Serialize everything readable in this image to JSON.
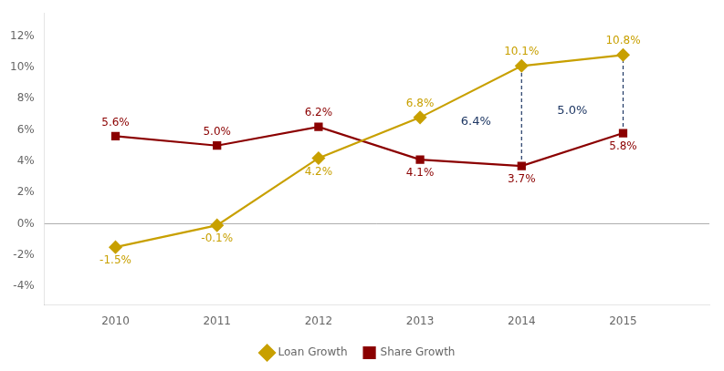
{
  "chart_data": {
    "type": "line",
    "x": [
      2010,
      2011,
      2012,
      2013,
      2014,
      2015
    ],
    "series": [
      {
        "name": "Loan Growth",
        "color": "#C8A000",
        "marker": "diamond",
        "values": [
          -1.5,
          -0.1,
          4.2,
          6.8,
          10.1,
          10.8
        ],
        "value_labels": [
          "-1.5%",
          "-0.1%",
          "4.2%",
          "6.8%",
          "10.1%",
          "10.8%"
        ]
      },
      {
        "name": "Share Growth",
        "color": "#8B0000",
        "marker": "square",
        "values": [
          5.6,
          5.0,
          6.2,
          4.1,
          3.7,
          5.8
        ],
        "value_labels": [
          "5.6%",
          "5.0%",
          "6.2%",
          "4.1%",
          "3.7%",
          "5.8%"
        ]
      }
    ],
    "xlim": [
      2009.3,
      2015.85
    ],
    "xticks": [
      2010,
      2011,
      2012,
      2013,
      2014,
      2015
    ],
    "ylim": [
      -5.2,
      13.5
    ],
    "yticks": [
      {
        "value": -4,
        "label": "-4%"
      },
      {
        "value": -2,
        "label": "-2%"
      },
      {
        "value": 0,
        "label": "0%"
      },
      {
        "value": 2,
        "label": "2%"
      },
      {
        "value": 4,
        "label": "4%"
      },
      {
        "value": 6,
        "label": "6%"
      },
      {
        "value": 8,
        "label": "8%"
      },
      {
        "value": 10,
        "label": "10%"
      },
      {
        "value": 12,
        "label": "12%"
      }
    ],
    "grid": false,
    "legend": "bottom",
    "data_labels": true,
    "annotations": [
      {
        "y": 0,
        "color": "#AAAAAA"
      },
      {
        "x": 2014,
        "y": [
          3.7,
          10.1
        ],
        "color": "#1F3864",
        "line_style": "dashed"
      },
      {
        "x": 2015,
        "y": [
          5.8,
          10.8
        ],
        "color": "#1F3864",
        "line_style": "dashed"
      },
      {
        "text": "5.0%",
        "x": 2014.5,
        "y": 7.25,
        "color": "#1F3864"
      },
      {
        "text": "6.4%",
        "x": 2013.55,
        "y": 6.55,
        "color": "#1F3864"
      }
    ]
  }
}
